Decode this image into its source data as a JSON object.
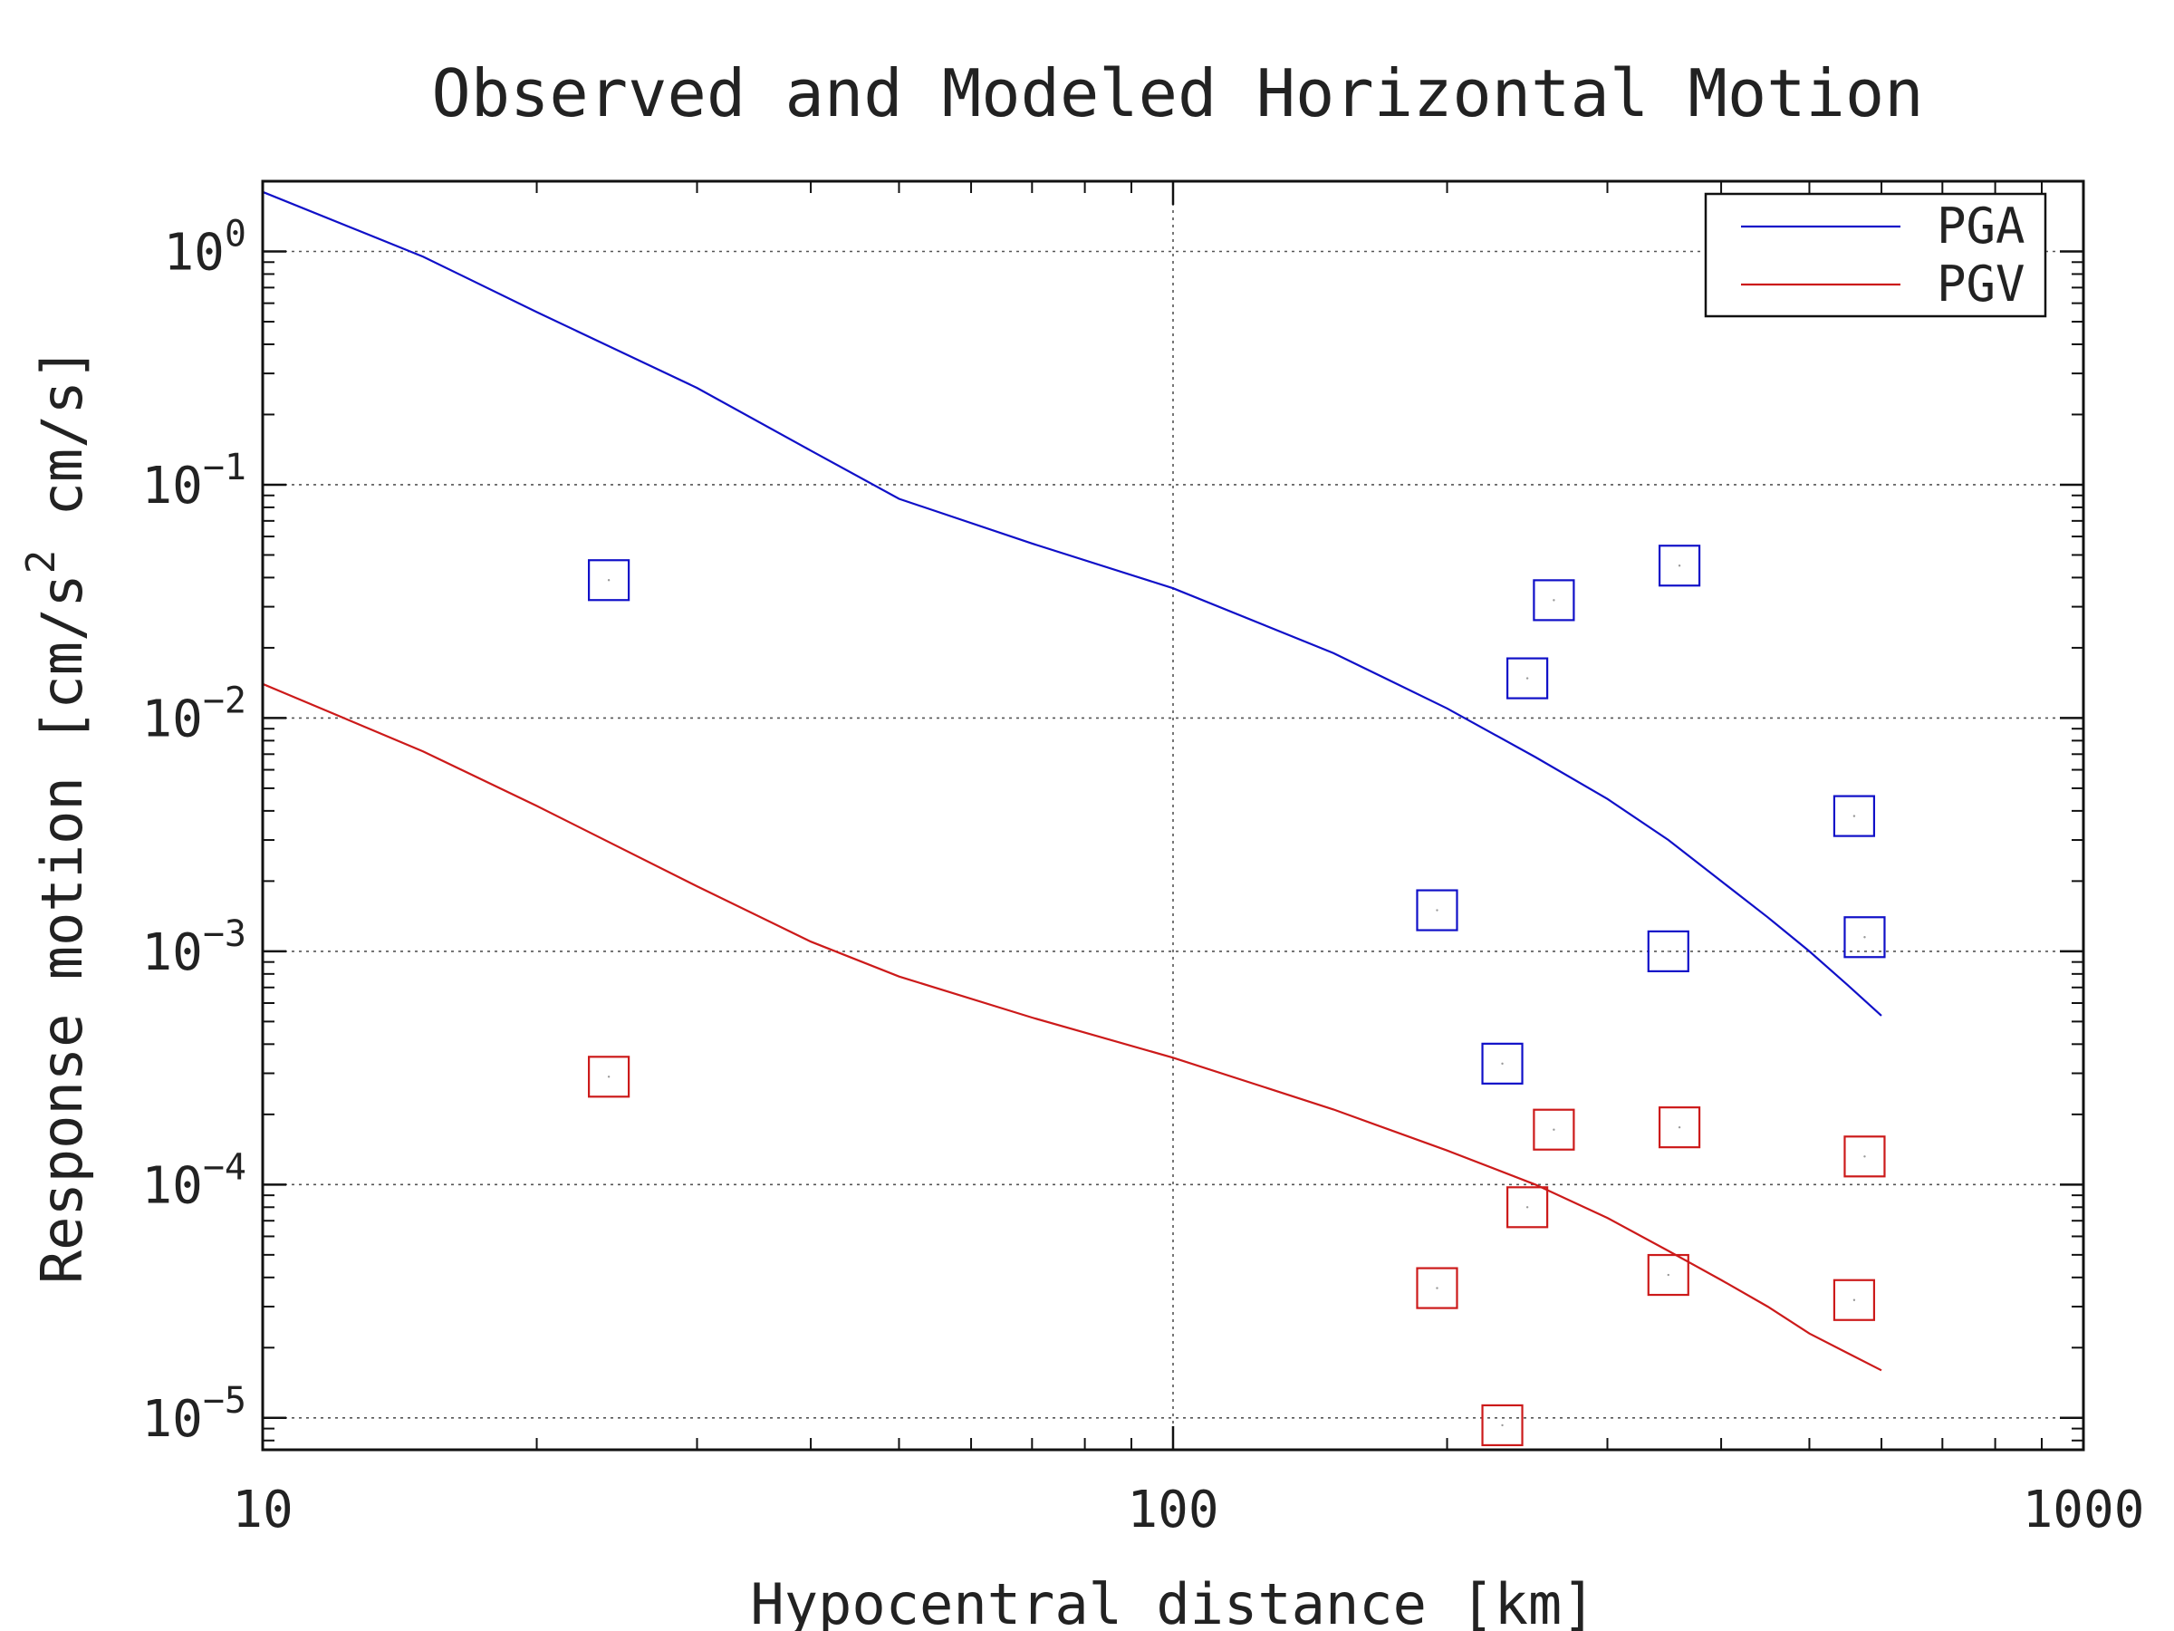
{
  "chart_data": {
    "type": "line",
    "title": "Observed and Modeled Horizontal Motion",
    "xlabel": "Hypocentral distance [km]",
    "ylabel": {
      "prefix": "Response motion [cm/s",
      "superscript": "2",
      "suffix": " cm/s]"
    },
    "x_scale": "log",
    "y_scale": "log",
    "xlim": [
      10,
      1000
    ],
    "ylim": [
      7.3e-06,
      2.0
    ],
    "x_ticks": [
      {
        "value": 10,
        "label": "10"
      },
      {
        "value": 100,
        "label": "100"
      },
      {
        "value": 1000,
        "label": "1000"
      }
    ],
    "y_ticks": [
      {
        "value": 1,
        "exp": "0"
      },
      {
        "value": 0.1,
        "exp": "−1"
      },
      {
        "value": 0.01,
        "exp": "−2"
      },
      {
        "value": 0.001,
        "exp": "−3"
      },
      {
        "value": 0.0001,
        "exp": "−4"
      },
      {
        "value": 1e-05,
        "exp": "−5"
      }
    ],
    "y_tick_base": "10",
    "grid": true,
    "legend_position": "top-right",
    "series": [
      {
        "name": "PGA",
        "color": "#1010c8",
        "x": [
          10,
          15,
          20,
          30,
          40,
          50,
          70,
          100,
          150,
          200,
          250,
          300,
          350,
          400,
          450,
          500,
          550,
          600
        ],
        "y": [
          1.8,
          0.95,
          0.55,
          0.26,
          0.14,
          0.087,
          0.056,
          0.036,
          0.019,
          0.011,
          0.0068,
          0.0045,
          0.003,
          0.002,
          0.0014,
          0.001,
          0.00072,
          0.00053
        ]
      },
      {
        "name": "PGV",
        "color": "#cc1a1a",
        "x": [
          10,
          15,
          20,
          30,
          40,
          50,
          70,
          100,
          150,
          200,
          250,
          300,
          350,
          400,
          450,
          500,
          550,
          600
        ],
        "y": [
          0.014,
          0.0072,
          0.0042,
          0.0019,
          0.0011,
          0.00078,
          0.00052,
          0.00035,
          0.00021,
          0.00014,
          0.0001,
          7.2e-05,
          5.2e-05,
          3.9e-05,
          3e-05,
          2.3e-05,
          1.9e-05,
          1.6e-05
        ]
      }
    ],
    "observed": [
      {
        "series": "PGA",
        "color": "#1010c8",
        "points": [
          {
            "x": 24,
            "y": 0.039
          },
          {
            "x": 195,
            "y": 0.0015
          },
          {
            "x": 230,
            "y": 0.00033
          },
          {
            "x": 245,
            "y": 0.0148
          },
          {
            "x": 262,
            "y": 0.032
          },
          {
            "x": 350,
            "y": 0.001
          },
          {
            "x": 360,
            "y": 0.045
          },
          {
            "x": 560,
            "y": 0.0038
          },
          {
            "x": 575,
            "y": 0.00115
          }
        ]
      },
      {
        "series": "PGV",
        "color": "#cc1a1a",
        "points": [
          {
            "x": 24,
            "y": 0.00029
          },
          {
            "x": 195,
            "y": 3.6e-05
          },
          {
            "x": 230,
            "y": 9.3e-06
          },
          {
            "x": 245,
            "y": 8e-05
          },
          {
            "x": 262,
            "y": 0.000172
          },
          {
            "x": 350,
            "y": 4.1e-05
          },
          {
            "x": 360,
            "y": 0.000176
          },
          {
            "x": 560,
            "y": 3.2e-05
          },
          {
            "x": 575,
            "y": 0.000132
          }
        ]
      }
    ]
  }
}
